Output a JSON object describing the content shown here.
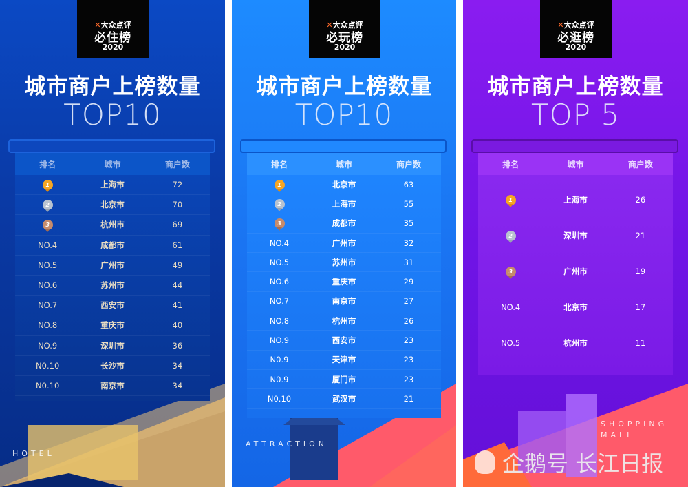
{
  "panels": [
    {
      "logo": {
        "brand": "大众点评",
        "name": "必住榜",
        "year": "2020"
      },
      "title": "城市商户上榜数量",
      "subtitle": "TOP10",
      "headers": [
        "排名",
        "城市",
        "商户数"
      ],
      "tag": "HOTEL",
      "rows": [
        [
          "1",
          "上海市",
          "72"
        ],
        [
          "2",
          "北京市",
          "70"
        ],
        [
          "3",
          "杭州市",
          "69"
        ],
        [
          "NO.4",
          "成都市",
          "61"
        ],
        [
          "NO.5",
          "广州市",
          "49"
        ],
        [
          "NO.6",
          "苏州市",
          "44"
        ],
        [
          "NO.7",
          "西安市",
          "41"
        ],
        [
          "NO.8",
          "重庆市",
          "40"
        ],
        [
          "NO.9",
          "深圳市",
          "36"
        ],
        [
          "N0.10",
          "长沙市",
          "34"
        ],
        [
          "N0.10",
          "南京市",
          "34"
        ]
      ]
    },
    {
      "logo": {
        "brand": "大众点评",
        "name": "必玩榜",
        "year": "2020"
      },
      "title": "城市商户上榜数量",
      "subtitle": "TOP10",
      "headers": [
        "排名",
        "城市",
        "商户数"
      ],
      "tag": "ATTRACTION",
      "rows": [
        [
          "1",
          "北京市",
          "63"
        ],
        [
          "2",
          "上海市",
          "55"
        ],
        [
          "3",
          "成都市",
          "35"
        ],
        [
          "NO.4",
          "广州市",
          "32"
        ],
        [
          "NO.5",
          "苏州市",
          "31"
        ],
        [
          "NO.6",
          "重庆市",
          "29"
        ],
        [
          "NO.7",
          "南京市",
          "27"
        ],
        [
          "NO.8",
          "杭州市",
          "26"
        ],
        [
          "NO.9",
          "西安市",
          "23"
        ],
        [
          "N0.9",
          "天津市",
          "23"
        ],
        [
          "N0.9",
          "厦门市",
          "23"
        ],
        [
          "N0.10",
          "武汉市",
          "21"
        ]
      ]
    },
    {
      "logo": {
        "brand": "大众点评",
        "name": "必逛榜",
        "year": "2020"
      },
      "title": "城市商户上榜数量",
      "subtitle": "TOP 5",
      "headers": [
        "排名",
        "城市",
        "商户数"
      ],
      "tag": "SHOPPING MALL",
      "rows": [
        [
          "1",
          "上海市",
          "26"
        ],
        [
          "2",
          "深圳市",
          "21"
        ],
        [
          "3",
          "广州市",
          "19"
        ],
        [
          "NO.4",
          "北京市",
          "17"
        ],
        [
          "NO.5",
          "杭州市",
          "11"
        ]
      ]
    }
  ],
  "watermark": "企鹅号 长江日报"
}
